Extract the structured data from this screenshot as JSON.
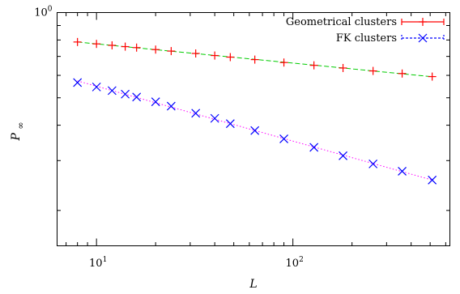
{
  "chart_data": {
    "type": "line",
    "title": "",
    "xlabel": "L",
    "ylabel": "P∞",
    "x_scale": "log",
    "y_scale": "log",
    "xlim": [
      6.3,
      630
    ],
    "ylim": [
      0.15,
      1.0
    ],
    "grid": false,
    "legend_position": "top-right",
    "x_tick_labels": [
      {
        "value": 10,
        "base": "10",
        "exp": "1"
      },
      {
        "value": 100,
        "base": "10",
        "exp": "2"
      }
    ],
    "y_tick_labels": [
      {
        "value": 1.0,
        "base": "10",
        "exp": "0"
      }
    ],
    "series": [
      {
        "name": "Geometrical clusters",
        "marker": "plus",
        "marker_color": "#ff0000",
        "fit_color": "#00cc00",
        "fit_style": "dashed",
        "x": [
          8,
          10,
          12,
          14,
          16,
          20,
          24,
          32,
          40,
          48,
          64,
          90,
          128,
          180,
          256,
          360,
          512
        ],
        "y": [
          0.787,
          0.775,
          0.766,
          0.758,
          0.752,
          0.74,
          0.731,
          0.717,
          0.705,
          0.696,
          0.682,
          0.666,
          0.651,
          0.637,
          0.622,
          0.609,
          0.594
        ]
      },
      {
        "name": "FK clusters",
        "marker": "cross",
        "marker_color": "#0000ff",
        "fit_color": "#ff00ff",
        "fit_style": "dotted",
        "x": [
          8,
          10,
          12,
          14,
          16,
          20,
          24,
          32,
          40,
          48,
          64,
          90,
          128,
          180,
          256,
          360,
          512
        ],
        "y": [
          0.566,
          0.546,
          0.53,
          0.515,
          0.503,
          0.484,
          0.467,
          0.441,
          0.423,
          0.405,
          0.383,
          0.358,
          0.334,
          0.312,
          0.292,
          0.275,
          0.256
        ]
      }
    ]
  }
}
